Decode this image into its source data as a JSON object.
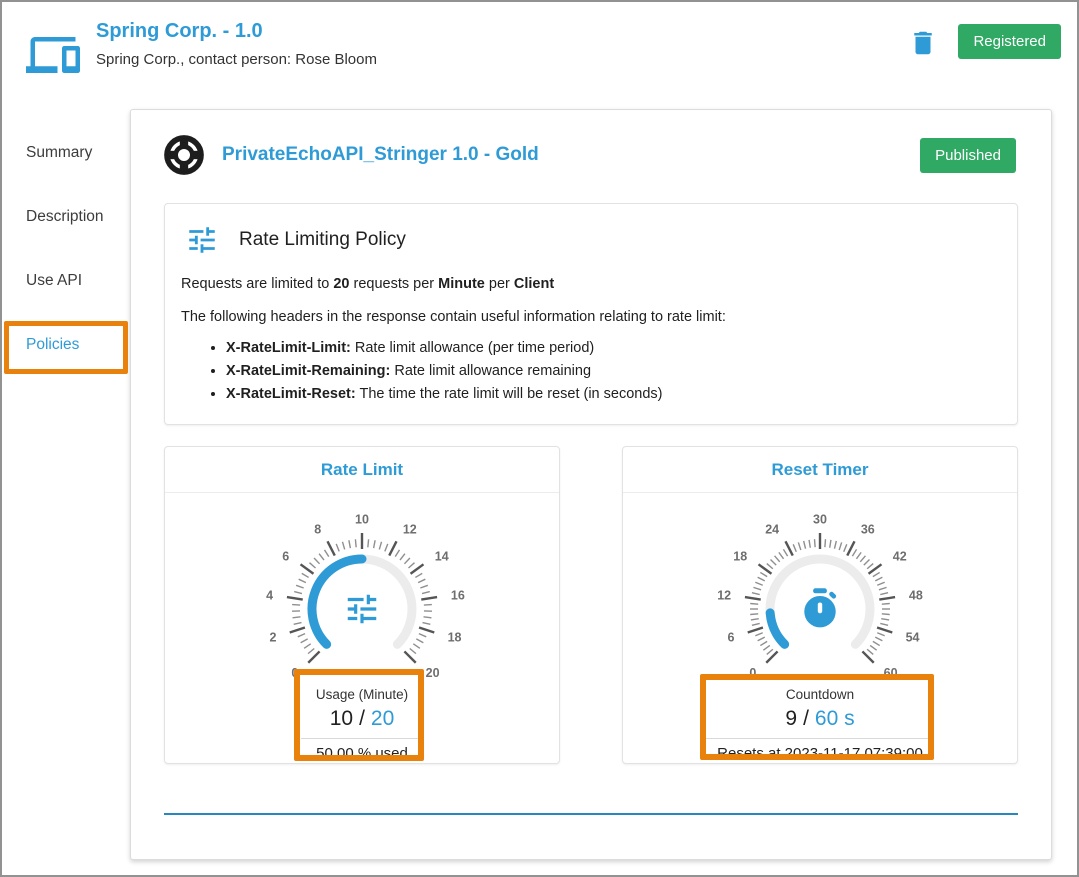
{
  "colors": {
    "accent": "#2e9bd6",
    "green": "#2fa963",
    "annotation_orange": "#e8820c",
    "divider_blue": "#2887bc",
    "gauge_track": "#ececec",
    "tick_major": "#555555",
    "tick_minor": "#8f8f8f",
    "tick_label": "#6e6e6e"
  },
  "header": {
    "title": "Spring Corp. - 1.0",
    "subtitle": "Spring Corp., contact person: Rose Bloom",
    "delete_icon": "trash-icon",
    "status_badge": "Registered"
  },
  "sidebar": {
    "items": [
      {
        "label": "Summary",
        "active": false
      },
      {
        "label": "Description",
        "active": false
      },
      {
        "label": "Use API",
        "active": false
      },
      {
        "label": "Policies",
        "active": true
      }
    ]
  },
  "main": {
    "api_icon": "life-ring-icon",
    "api_title": "PrivateEchoAPI_Stringer 1.0 - Gold",
    "api_status_badge": "Published",
    "policy": {
      "icon": "tune-icon",
      "heading": "Rate Limiting Policy",
      "limit_line": {
        "t1": "Requests are limited to ",
        "b1": "20",
        "t2": " requests per ",
        "b2": "Minute",
        "t3": " per ",
        "b3": "Client"
      },
      "headers_intro": "The following headers in the response contain useful information relating to rate limit:",
      "bullets": [
        {
          "term": "X-RateLimit-Limit:",
          "desc": " Rate limit allowance (per time period)"
        },
        {
          "term": "X-RateLimit-Remaining:",
          "desc": " Rate limit allowance remaining"
        },
        {
          "term": "X-RateLimit-Reset:",
          "desc": " The time the rate limit will be reset (in seconds)"
        }
      ]
    },
    "gauges": [
      {
        "type": "gauge",
        "title": "Rate Limit",
        "min": 0,
        "max": 20,
        "major_step": 2,
        "minor_step": 0.4,
        "value": 10,
        "tick_labels": [
          "0",
          "2",
          "4",
          "6",
          "8",
          "10",
          "12",
          "14",
          "16",
          "18",
          "20"
        ],
        "center_icon": "tune-icon",
        "info_label": "Usage (Minute)",
        "value_text": "10",
        "separator": "/",
        "total_text": "20",
        "footer": "50.00 % used"
      },
      {
        "type": "gauge",
        "title": "Reset Timer",
        "min": 0,
        "max": 60,
        "major_step": 6,
        "minor_step": 1,
        "value": 9,
        "tick_labels": [
          "0",
          "6",
          "12",
          "18",
          "24",
          "30",
          "36",
          "42",
          "48",
          "54",
          "60"
        ],
        "center_icon": "timer-icon",
        "info_label": "Countdown",
        "value_text": "9",
        "separator": "/",
        "total_text": "60 s",
        "footer": "Resets at 2023-11-17 07:39:00"
      }
    ]
  }
}
